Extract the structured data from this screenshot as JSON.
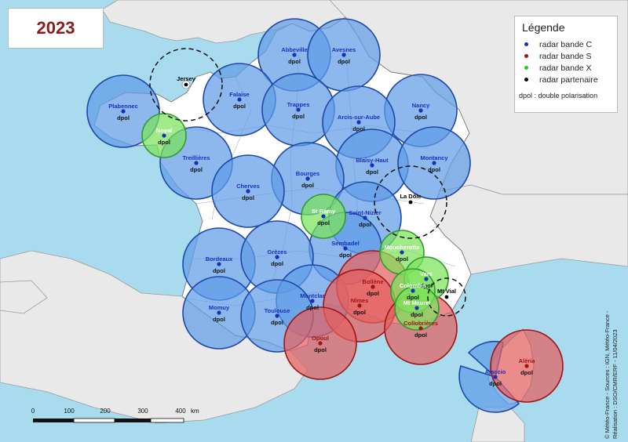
{
  "year": "2023",
  "legend": {
    "title": "Légende",
    "items": [
      {
        "label": "radar bande C",
        "color": "#1a2fb8"
      },
      {
        "label": "radar bande S",
        "color": "#a01414"
      },
      {
        "label": "radar bande X",
        "color": "#22cc22"
      },
      {
        "label": "radar partenaire",
        "color": "#000000"
      }
    ],
    "note": "dpol : double polarisation"
  },
  "credits": "© Météo-France - Sources : IGN, Météo-France -\nRéalisation : DSO/CMR/ERF - 11/04/2023",
  "colors": {
    "sea": "#a9dbef",
    "land": "#ffffff",
    "neighbour_land": "#e9e9e9",
    "band_c_fill": "#5f9de8",
    "band_c_stroke": "#1f47a8",
    "band_s_fill": "#e35f5f",
    "band_s_stroke": "#a01414",
    "band_x_fill": "#7be35a",
    "band_x_stroke": "#2f9a2f"
  },
  "scale_bar": {
    "ticks": [
      "0",
      "100",
      "200",
      "300",
      "400"
    ],
    "unit": "km"
  },
  "dpol_label": "dpol",
  "radars": [
    {
      "name": "Abbeville",
      "band": "C",
      "dpol": true
    },
    {
      "name": "Avesnes",
      "band": "C",
      "dpol": true
    },
    {
      "name": "Falaise",
      "band": "C",
      "dpol": true
    },
    {
      "name": "Trappes",
      "band": "C",
      "dpol": true
    },
    {
      "name": "Plabennec",
      "band": "C",
      "dpol": true
    },
    {
      "name": "Noyal",
      "band": "X",
      "dpol": true
    },
    {
      "name": "Nancy",
      "band": "C",
      "dpol": true
    },
    {
      "name": "Arcis-sur-Aube",
      "band": "C",
      "dpol": true
    },
    {
      "name": "Treillières",
      "band": "C",
      "dpol": true
    },
    {
      "name": "Blaisy-Haut",
      "band": "C",
      "dpol": true
    },
    {
      "name": "Montancy",
      "band": "C",
      "dpol": true
    },
    {
      "name": "Bourges",
      "band": "C",
      "dpol": true
    },
    {
      "name": "Cherves",
      "band": "C",
      "dpol": true
    },
    {
      "name": "St Rémy",
      "band": "X",
      "dpol": true
    },
    {
      "name": "Saint-Nizier",
      "band": "C",
      "dpol": true
    },
    {
      "name": "Sembadel",
      "band": "C",
      "dpol": true
    },
    {
      "name": "Bordeaux",
      "band": "C",
      "dpol": true
    },
    {
      "name": "Grèzes",
      "band": "C",
      "dpol": true
    },
    {
      "name": "Moucherotte",
      "band": "X",
      "dpol": true
    },
    {
      "name": "Bollène",
      "band": "S",
      "dpol": true
    },
    {
      "name": "Vars",
      "band": "X",
      "dpol": true
    },
    {
      "name": "Colombis",
      "band": "X",
      "dpol": true
    },
    {
      "name": "Momuy",
      "band": "C",
      "dpol": true
    },
    {
      "name": "Montclar",
      "band": "C",
      "dpol": true
    },
    {
      "name": "Nîmes",
      "band": "S",
      "dpol": true
    },
    {
      "name": "Mt Maurel",
      "band": "X",
      "dpol": true
    },
    {
      "name": "Toulouse",
      "band": "C",
      "dpol": true
    },
    {
      "name": "Collobrières",
      "band": "S",
      "dpol": true
    },
    {
      "name": "Opoul",
      "band": "S",
      "dpol": true
    },
    {
      "name": "Ajaccio",
      "band": "C",
      "dpol": true
    },
    {
      "name": "Aléria",
      "band": "S",
      "dpol": true
    }
  ],
  "partner_radars": [
    {
      "name": "Jersey"
    },
    {
      "name": "La Dôle"
    },
    {
      "name": "Mt Vial"
    }
  ]
}
